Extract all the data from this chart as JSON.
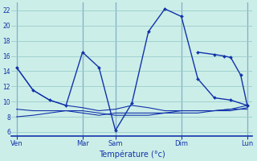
{
  "background_color": "#cceee8",
  "grid_color": "#99cccc",
  "line_color": "#1133aa",
  "xlabel": "Température (°c)",
  "yticks": [
    6,
    8,
    10,
    12,
    14,
    16,
    18,
    20,
    22
  ],
  "ylim": [
    5.5,
    23.0
  ],
  "xlim": [
    -0.15,
    7.15
  ],
  "day_labels": [
    "Ven",
    "Mar",
    "Sam",
    "Dim",
    "Lun"
  ],
  "day_positions": [
    0,
    2,
    3,
    5,
    7
  ],
  "main_x": [
    0,
    0.5,
    1,
    1.5,
    2,
    2.5,
    3,
    3.5,
    4,
    4.5,
    5,
    5.5,
    6,
    6.5,
    7
  ],
  "main_y": [
    14.5,
    11.5,
    10.2,
    9.5,
    16.5,
    14.5,
    6.2,
    9.8,
    19.2,
    22.2,
    21.2,
    13.0,
    10.5,
    10.2,
    9.5
  ],
  "dim_x": [
    5.5,
    6.0,
    6.3,
    6.5,
    6.8,
    7.0
  ],
  "dim_y": [
    16.5,
    16.2,
    16.0,
    15.8,
    13.5,
    9.5
  ],
  "flat1_x": [
    0,
    0.5,
    1,
    1.5,
    2,
    2.5,
    3,
    3.5,
    4,
    4.5,
    5,
    5.5,
    6,
    6.5,
    7
  ],
  "flat1_y": [
    14.5,
    11.5,
    10.2,
    9.5,
    9.2,
    8.8,
    9.0,
    9.5,
    9.2,
    8.8,
    8.8,
    8.8,
    8.8,
    9.0,
    9.5
  ],
  "flat2_x": [
    0,
    0.5,
    1,
    1.5,
    2,
    2.5,
    3,
    3.5,
    4,
    4.5,
    5,
    5.5,
    6,
    6.5,
    7
  ],
  "flat2_y": [
    9.0,
    8.8,
    8.8,
    8.8,
    8.5,
    8.2,
    8.5,
    8.5,
    8.5,
    8.5,
    8.5,
    8.5,
    8.8,
    8.8,
    9.2
  ],
  "flat3_x": [
    0,
    0.5,
    1,
    1.5,
    2,
    2.5,
    3,
    3.5,
    4,
    4.5,
    5,
    5.5,
    6,
    6.5,
    7
  ],
  "flat3_y": [
    8.0,
    8.2,
    8.5,
    8.8,
    8.8,
    8.5,
    8.2,
    8.2,
    8.2,
    8.5,
    8.8,
    8.8,
    8.8,
    9.0,
    9.0
  ]
}
